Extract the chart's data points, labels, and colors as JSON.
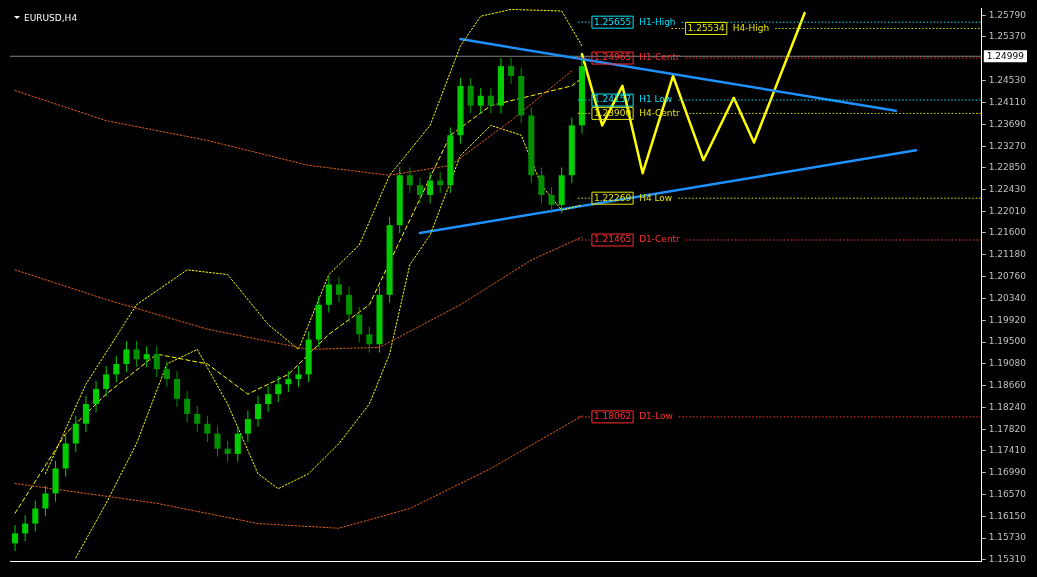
{
  "chart_data": {
    "type": "candlestick",
    "title": "EURUSD,H4",
    "colors": [
      "#00cc00",
      "#00cc00",
      "#00cc00",
      "#00cc00",
      "#00cc00",
      "#00cc00",
      "#00cc00",
      "#00cc00",
      "#00cc00",
      "#00cc00",
      "#00cc00",
      "#00cc00",
      "#009000",
      "#00cc00",
      "#009000",
      "#009000",
      "#009000",
      "#009000",
      "#009000",
      "#009000",
      "#009000",
      "#009000",
      "#00cc00",
      "#00cc00",
      "#00cc00",
      "#00cc00",
      "#00cc00",
      "#00cc00",
      "#00cc00",
      "#00cc00",
      "#00cc00",
      "#00cc00",
      "#009000",
      "#009000",
      "#009000",
      "#009000",
      "#00cc00",
      "#00cc00",
      "#00cc00",
      "#009000",
      "#009000",
      "#00cc00",
      "#009000",
      "#00cc00",
      "#00cc00",
      "#009000",
      "#00cc00",
      "#009000",
      "#00cc00",
      "#009000",
      "#009000",
      "#009000",
      "#009000",
      "#009000",
      "#00cc00",
      "#00cc00",
      "#00cc00",
      null,
      null,
      null,
      null,
      null,
      null,
      null,
      null,
      null,
      null,
      null,
      null,
      null,
      null,
      null,
      null,
      null,
      null,
      null,
      null,
      null,
      null,
      null,
      null,
      null,
      null,
      null,
      null,
      null,
      null,
      null,
      null,
      null,
      null,
      null,
      null,
      null,
      null,
      null
    ],
    "categories": [
      null,
      null,
      null,
      null,
      null,
      null,
      null,
      null,
      null,
      null,
      null,
      null,
      null,
      null,
      null,
      null,
      null,
      null,
      null,
      null,
      null,
      null,
      null,
      null,
      null,
      null,
      null,
      null,
      null,
      null,
      null,
      null,
      null,
      null,
      null,
      null,
      null,
      null,
      null,
      null,
      null,
      null,
      null,
      null,
      null,
      null,
      null,
      null,
      null,
      null,
      null,
      null,
      null,
      null,
      null,
      null,
      null,
      null,
      null,
      null,
      null,
      null,
      null,
      null,
      null,
      null,
      null,
      null,
      null,
      null,
      null,
      null,
      null,
      null,
      null,
      null,
      null,
      null,
      null,
      null,
      null,
      null,
      null,
      null,
      null,
      null,
      null,
      null,
      null,
      null,
      null,
      null,
      null,
      null,
      null,
      null
    ],
    "ohlc": [
      [
        1.1563,
        1.1598,
        1.1548,
        1.1582
      ],
      [
        1.1582,
        1.1617,
        1.1567,
        1.1601
      ],
      [
        1.1601,
        1.1645,
        1.1586,
        1.163
      ],
      [
        1.163,
        1.1674,
        1.1615,
        1.1659
      ],
      [
        1.1659,
        1.1722,
        1.1643,
        1.1707
      ],
      [
        1.1707,
        1.177,
        1.1691,
        1.1755
      ],
      [
        1.1755,
        1.1808,
        1.1739,
        1.1793
      ],
      [
        1.1793,
        1.1847,
        1.1777,
        1.1831
      ],
      [
        1.1831,
        1.1875,
        1.1816,
        1.186
      ],
      [
        1.186,
        1.1904,
        1.1845,
        1.1888
      ],
      [
        1.1888,
        1.1923,
        1.1873,
        1.1908
      ],
      [
        1.1908,
        1.1952,
        1.1892,
        1.1936
      ],
      [
        1.1936,
        1.1952,
        1.1902,
        1.1917
      ],
      [
        1.1917,
        1.1942,
        1.1902,
        1.1927
      ],
      [
        1.1927,
        1.1942,
        1.1883,
        1.1898
      ],
      [
        1.1898,
        1.1913,
        1.1864,
        1.1879
      ],
      [
        1.1879,
        1.1894,
        1.1825,
        1.1841
      ],
      [
        1.1841,
        1.1856,
        1.1796,
        1.1812
      ],
      [
        1.1812,
        1.1827,
        1.1777,
        1.1793
      ],
      [
        1.1793,
        1.1808,
        1.1758,
        1.1774
      ],
      [
        1.1774,
        1.1789,
        1.173,
        1.1745
      ],
      [
        1.1745,
        1.176,
        1.172,
        1.1735
      ],
      [
        1.1735,
        1.1789,
        1.172,
        1.1774
      ],
      [
        1.1774,
        1.1818,
        1.1758,
        1.1802
      ],
      [
        1.1802,
        1.1847,
        1.1787,
        1.1831
      ],
      [
        1.1831,
        1.1865,
        1.1816,
        1.185
      ],
      [
        1.185,
        1.1885,
        1.1835,
        1.1869
      ],
      [
        1.1869,
        1.1894,
        1.1854,
        1.1879
      ],
      [
        1.1879,
        1.1904,
        1.1864,
        1.1888
      ],
      [
        1.1888,
        1.1971,
        1.1873,
        1.1955
      ],
      [
        1.1955,
        1.2038,
        1.194,
        1.2022
      ],
      [
        1.2022,
        1.2076,
        1.2007,
        1.2061
      ],
      [
        1.2061,
        1.2076,
        1.2026,
        1.2041
      ],
      [
        1.2041,
        1.2057,
        1.1988,
        1.2003
      ],
      [
        1.2003,
        1.2018,
        1.195,
        1.1965
      ],
      [
        1.1965,
        1.198,
        1.193,
        1.1946
      ],
      [
        1.1946,
        1.2057,
        1.193,
        1.2041
      ],
      [
        1.2041,
        1.2191,
        1.2026,
        1.2175
      ],
      [
        1.2175,
        1.2286,
        1.216,
        1.2271
      ],
      [
        1.2271,
        1.2286,
        1.2237,
        1.2252
      ],
      [
        1.2252,
        1.2267,
        1.2217,
        1.2233
      ],
      [
        1.2233,
        1.2277,
        1.2217,
        1.2261
      ],
      [
        1.2261,
        1.2277,
        1.2237,
        1.2252
      ],
      [
        1.2252,
        1.2363,
        1.2237,
        1.2348
      ],
      [
        1.2348,
        1.2458,
        1.2332,
        1.2443
      ],
      [
        1.2443,
        1.2458,
        1.239,
        1.2405
      ],
      [
        1.2405,
        1.2439,
        1.239,
        1.2424
      ],
      [
        1.2424,
        1.2439,
        1.239,
        1.2405
      ],
      [
        1.2405,
        1.2497,
        1.239,
        1.2481
      ],
      [
        1.2481,
        1.2497,
        1.2447,
        1.2462
      ],
      [
        1.2462,
        1.2478,
        1.2371,
        1.2386
      ],
      [
        1.2386,
        1.2401,
        1.2256,
        1.2271
      ],
      [
        1.2271,
        1.2286,
        1.2217,
        1.2233
      ],
      [
        1.2233,
        1.2248,
        1.2198,
        1.2214
      ],
      [
        1.2214,
        1.2286,
        1.2198,
        1.2271
      ],
      [
        1.2271,
        1.2382,
        1.2256,
        1.2367
      ],
      [
        1.2367,
        1.2497,
        1.2351,
        1.2481
      ],
      null,
      null,
      null,
      null,
      null,
      null,
      null,
      null,
      null,
      null,
      null,
      null,
      null,
      null,
      null,
      null,
      null,
      null,
      null,
      null,
      null,
      null,
      null,
      null,
      null,
      null,
      null,
      null,
      null,
      null,
      null,
      null,
      null,
      null,
      null,
      null,
      null,
      null,
      null
    ],
    "series": [
      {
        "type": "line",
        "line_style": "dotted",
        "color": "#e0601a",
        "values": [
          1.2434,
          null,
          null,
          null,
          null,
          null,
          null,
          null,
          null,
          1.2376,
          null,
          null,
          null,
          null,
          null,
          null,
          null,
          null,
          null,
          1.2338,
          null,
          null,
          null,
          null,
          null,
          null,
          null,
          null,
          null,
          1.229,
          null,
          null,
          null,
          null,
          null,
          null,
          null,
          1.2271,
          null,
          null,
          null,
          null,
          null,
          1.229,
          null,
          null,
          null,
          null,
          null,
          1.2376,
          null,
          null,
          null,
          null,
          null,
          1.2472,
          null,
          null,
          null,
          null,
          null,
          null,
          null,
          null,
          null,
          null,
          null,
          null,
          null,
          null,
          null,
          null,
          null,
          null,
          null,
          null,
          null,
          null,
          null,
          null,
          null,
          null,
          null,
          null,
          null,
          null,
          null,
          null,
          null,
          null,
          null,
          null,
          null,
          null,
          null,
          null
        ]
      },
      {
        "type": "line",
        "line_style": "dotted",
        "color": "#e0601a",
        "values": [
          1.2089,
          null,
          null,
          null,
          null,
          null,
          null,
          null,
          null,
          1.2032,
          null,
          null,
          null,
          null,
          null,
          null,
          null,
          null,
          null,
          1.1975,
          null,
          null,
          null,
          null,
          null,
          null,
          null,
          null,
          null,
          1.1936,
          null,
          null,
          null,
          null,
          null,
          null,
          1.194,
          null,
          null,
          null,
          null,
          null,
          null,
          null,
          1.2022,
          null,
          null,
          null,
          null,
          null,
          null,
          1.2108,
          null,
          null,
          null,
          null,
          1.2152,
          null,
          null,
          null,
          null,
          null,
          null,
          null,
          null,
          null,
          null,
          null,
          null,
          null,
          null,
          null,
          null,
          null,
          null,
          null,
          null,
          null,
          null,
          null,
          null,
          null,
          null,
          null,
          null,
          null,
          null,
          null,
          null,
          null,
          null,
          null,
          null,
          null,
          null,
          null
        ]
      },
      {
        "type": "line",
        "line_style": "dotted",
        "color": "#e0601a",
        "values": [
          1.1678,
          null,
          null,
          null,
          null,
          null,
          null,
          null,
          null,
          null,
          null,
          null,
          null,
          null,
          1.164,
          null,
          null,
          null,
          null,
          null,
          null,
          null,
          null,
          null,
          1.1601,
          null,
          null,
          null,
          null,
          null,
          null,
          null,
          1.1592,
          null,
          null,
          null,
          null,
          null,
          null,
          1.163,
          null,
          null,
          null,
          null,
          null,
          null,
          null,
          1.1707,
          null,
          null,
          null,
          null,
          null,
          null,
          null,
          null,
          1.1808,
          null,
          null,
          null,
          null,
          null,
          null,
          null,
          null,
          null,
          null,
          null,
          null,
          null,
          null,
          null,
          null,
          null,
          null,
          null,
          null,
          null,
          null,
          null,
          null,
          null,
          null,
          null,
          null,
          null,
          null,
          null,
          null,
          null,
          null,
          null,
          null,
          null,
          null,
          null
        ]
      },
      {
        "type": "line",
        "line_style": "dotted",
        "color": "#ffff00",
        "values": [
          null,
          null,
          null,
          1.1697,
          null,
          null,
          null,
          1.1869,
          null,
          null,
          null,
          null,
          1.2022,
          null,
          null,
          null,
          null,
          1.2089,
          null,
          null,
          null,
          1.208,
          null,
          null,
          null,
          1.1984,
          null,
          null,
          1.1936,
          null,
          null,
          1.208,
          null,
          null,
          1.2137,
          null,
          null,
          1.2271,
          null,
          null,
          null,
          1.2367,
          null,
          null,
          1.252,
          null,
          1.2577,
          null,
          null,
          1.259,
          null,
          null,
          null,
          null,
          1.2587,
          null,
          1.252,
          null,
          null,
          null,
          null,
          null,
          null,
          null,
          null,
          null,
          null,
          null,
          null,
          null,
          null,
          null,
          null,
          null,
          null,
          null,
          null,
          null,
          null,
          null,
          null,
          null,
          null,
          null,
          null,
          null,
          null,
          null,
          null,
          null,
          null,
          null,
          null,
          null,
          null,
          null
        ]
      },
      {
        "type": "line",
        "line_style": "dotted",
        "color": "#ffff00",
        "values": [
          null,
          null,
          null,
          null,
          null,
          null,
          1.1535,
          null,
          null,
          1.164,
          null,
          null,
          1.1755,
          null,
          null,
          1.1908,
          null,
          null,
          1.1936,
          null,
          null,
          1.1831,
          null,
          null,
          1.1697,
          null,
          1.1668,
          null,
          null,
          1.1697,
          null,
          null,
          1.1755,
          null,
          null,
          1.1831,
          null,
          1.1927,
          null,
          1.2099,
          null,
          1.2156,
          null,
          null,
          1.2309,
          null,
          null,
          1.2367,
          null,
          null,
          1.2348,
          null,
          1.2252,
          null,
          1.2204,
          null,
          1.2214,
          null,
          null,
          null,
          null,
          null,
          null,
          null,
          null,
          null,
          null,
          null,
          null,
          null,
          null,
          null,
          null,
          null,
          null,
          null,
          null,
          null,
          null,
          null,
          null,
          null,
          null,
          null,
          null,
          null,
          null,
          null,
          null,
          null,
          null,
          null,
          null,
          null,
          null,
          null
        ]
      },
      {
        "type": "line",
        "line_style": "dashed",
        "color": "#ffff00",
        "values": [
          1.1621,
          null,
          null,
          null,
          null,
          1.1774,
          null,
          null,
          null,
          1.185,
          null,
          null,
          null,
          null,
          1.1927,
          null,
          null,
          null,
          null,
          1.1908,
          null,
          null,
          null,
          1.185,
          null,
          null,
          null,
          1.1888,
          null,
          null,
          null,
          1.1965,
          null,
          null,
          null,
          1.2022,
          null,
          null,
          null,
          null,
          null,
          null,
          null,
          1.2348,
          null,
          null,
          null,
          1.2405,
          null,
          null,
          null,
          1.2424,
          null,
          null,
          null,
          1.2443,
          1.2458,
          null,
          null,
          null,
          null,
          null,
          null,
          null,
          null,
          null,
          null,
          null,
          null,
          null,
          null,
          null,
          null,
          null,
          null,
          null,
          null,
          null,
          null,
          null,
          null,
          null,
          null,
          null,
          null,
          null,
          null,
          null,
          null,
          null,
          null,
          null,
          null,
          null,
          null,
          null
        ]
      },
      {
        "type": "line",
        "line_style": "solid",
        "color": "#1e90ff",
        "values": [
          null,
          null,
          null,
          null,
          null,
          null,
          null,
          null,
          null,
          null,
          null,
          null,
          null,
          null,
          null,
          null,
          null,
          null,
          null,
          null,
          null,
          null,
          null,
          null,
          null,
          null,
          null,
          null,
          null,
          null,
          null,
          null,
          null,
          null,
          null,
          null,
          null,
          null,
          null,
          null,
          null,
          null,
          null,
          null,
          1.2533,
          null,
          null,
          null,
          null,
          null,
          null,
          null,
          null,
          null,
          null,
          null,
          null,
          null,
          null,
          null,
          null,
          null,
          null,
          null,
          null,
          null,
          null,
          null,
          null,
          null,
          null,
          null,
          null,
          null,
          null,
          null,
          null,
          null,
          null,
          null,
          null,
          null,
          null,
          null,
          null,
          null,
          null,
          1.2395,
          null,
          null,
          null,
          null,
          null,
          null,
          null,
          null
        ]
      },
      {
        "type": "line",
        "line_style": "solid",
        "color": "#1e90ff",
        "values": [
          null,
          null,
          null,
          null,
          null,
          null,
          null,
          null,
          null,
          null,
          null,
          null,
          null,
          null,
          null,
          null,
          null,
          null,
          null,
          null,
          null,
          null,
          null,
          null,
          null,
          null,
          null,
          null,
          null,
          null,
          null,
          null,
          null,
          null,
          null,
          null,
          null,
          null,
          null,
          null,
          1.216,
          null,
          null,
          null,
          null,
          null,
          null,
          null,
          null,
          null,
          null,
          null,
          null,
          null,
          null,
          null,
          null,
          null,
          null,
          null,
          null,
          null,
          null,
          null,
          null,
          null,
          null,
          null,
          null,
          null,
          null,
          null,
          null,
          null,
          null,
          null,
          null,
          null,
          null,
          null,
          null,
          null,
          null,
          null,
          null,
          null,
          null,
          null,
          null,
          1.2319,
          null,
          null,
          null,
          null,
          null,
          null
        ]
      },
      {
        "type": "line",
        "line_style": "solid",
        "color": "#ffff00",
        "values": [
          null,
          null,
          null,
          null,
          null,
          null,
          null,
          null,
          null,
          null,
          null,
          null,
          null,
          null,
          null,
          null,
          null,
          null,
          null,
          null,
          null,
          null,
          null,
          null,
          null,
          null,
          null,
          null,
          null,
          null,
          null,
          null,
          null,
          null,
          null,
          null,
          null,
          null,
          null,
          null,
          null,
          null,
          null,
          null,
          null,
          null,
          null,
          null,
          null,
          null,
          null,
          null,
          null,
          null,
          null,
          null,
          1.2504,
          null,
          1.2367,
          null,
          1.2443,
          null,
          1.2275,
          null,
          null,
          1.2462,
          null,
          null,
          1.23,
          null,
          null,
          1.242,
          null,
          1.2334,
          null,
          null,
          null,
          null,
          1.2583,
          null,
          null,
          null,
          null,
          null,
          null,
          null,
          null,
          null,
          null,
          null,
          null,
          null,
          null,
          null,
          null,
          null
        ]
      }
    ],
    "ylim": [
      1.1529,
      1.2592
    ],
    "yticks": [
      {
        "value": 1.2579,
        "label": "1.25790"
      },
      {
        "value": 1.2537,
        "label": "1.25370"
      },
      {
        "value": 1.2453,
        "label": "1.24530"
      },
      {
        "value": 1.2411,
        "label": "1.24110"
      },
      {
        "value": 1.2369,
        "label": "1.23690"
      },
      {
        "value": 1.2327,
        "label": "1.23270"
      },
      {
        "value": 1.2285,
        "label": "1.22850"
      },
      {
        "value": 1.2243,
        "label": "1.22430"
      },
      {
        "value": 1.2201,
        "label": "1.22010"
      },
      {
        "value": 1.216,
        "label": "1.21600"
      },
      {
        "value": 1.2118,
        "label": "1.21180"
      },
      {
        "value": 1.2076,
        "label": "1.20760"
      },
      {
        "value": 1.2034,
        "label": "1.20340"
      },
      {
        "value": 1.1992,
        "label": "1.19920"
      },
      {
        "value": 1.195,
        "label": "1.19500"
      },
      {
        "value": 1.1908,
        "label": "1.19080"
      },
      {
        "value": 1.1866,
        "label": "1.18660"
      },
      {
        "value": 1.1824,
        "label": "1.18240"
      },
      {
        "value": 1.1782,
        "label": "1.17820"
      },
      {
        "value": 1.1741,
        "label": "1.17410"
      },
      {
        "value": 1.1699,
        "label": "1.16990"
      },
      {
        "value": 1.1657,
        "label": "1.16570"
      },
      {
        "value": 1.1615,
        "label": "1.16150"
      },
      {
        "value": 1.1573,
        "label": "1.15730"
      },
      {
        "value": 1.1531,
        "label": "1.15310"
      }
    ],
    "ref_lines": [
      {
        "axis": "y",
        "value": 1.24999,
        "label": "1.24999",
        "color": "#808080",
        "line_style": "solid"
      },
      {
        "axis": "y",
        "value": 1.25655,
        "label": "1.25655 H1-High",
        "color": "#00e5ff",
        "line_style": "dotted"
      },
      {
        "axis": "y",
        "value": 1.25534,
        "label": "1.25534 H4-High",
        "color": "#e6e600",
        "line_style": "dotted"
      },
      {
        "axis": "y",
        "value": 1.24965,
        "label": "1.24965 H1-Centr",
        "color": "#ff3030",
        "line_style": "dotted"
      },
      {
        "axis": "y",
        "value": 1.24157,
        "label": "1.24157 H1 Low",
        "color": "#00e5ff",
        "line_style": "dotted"
      },
      {
        "axis": "y",
        "value": 1.239,
        "label": "1.23900 H4-Centr",
        "color": "#e6e600",
        "line_style": "dotted"
      },
      {
        "axis": "y",
        "value": 1.22269,
        "label": "1.22269 H4 Low",
        "color": "#e6e600",
        "line_style": "dotted"
      },
      {
        "axis": "y",
        "value": 1.21465,
        "label": "1.21465 D1-Centr",
        "color": "#ff3030",
        "line_style": "dotted"
      },
      {
        "axis": "y",
        "value": 1.18062,
        "label": "1.18062 D1-Low",
        "color": "#ff3030",
        "line_style": "dotted"
      }
    ],
    "tick_labels": "y",
    "grid": false,
    "legend": false
  }
}
